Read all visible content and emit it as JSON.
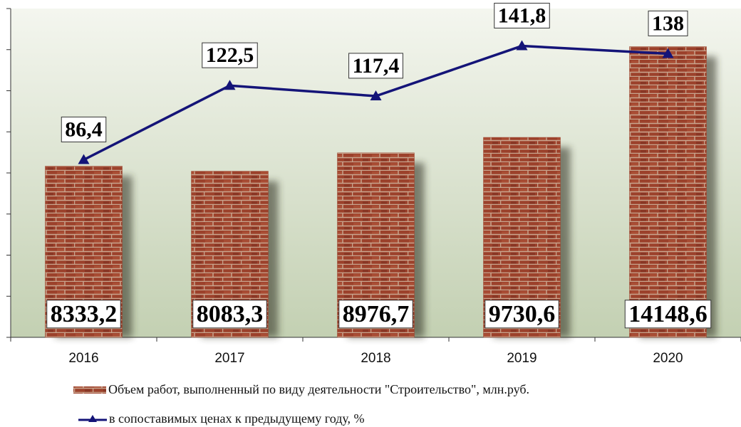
{
  "chart_data": {
    "type": "bar_line",
    "categories": [
      "2016",
      "2017",
      "2018",
      "2019",
      "2020"
    ],
    "series": [
      {
        "name": "Объем работ, выполненный по виду деятельности \"Строительство\", млн.руб.",
        "type": "bar",
        "color": "#9c412b",
        "values": [
          8333.2,
          8083.3,
          8976.7,
          9730.6,
          14148.6
        ],
        "value_labels": [
          "8333,2",
          "8083,3",
          "8976,7",
          "9730,6",
          "14148,6"
        ]
      },
      {
        "name": "в сопоставимых ценах к предыдущему году, %",
        "type": "line",
        "axis": "y2",
        "color": "#141478",
        "values": [
          86.4,
          122.5,
          117.4,
          141.8,
          138
        ],
        "value_labels": [
          "86,4",
          "122,5",
          "117,4",
          "141,8",
          "138"
        ]
      }
    ],
    "ylim": [
      0,
      16000
    ],
    "yticks": [
      0,
      2000,
      4000,
      6000,
      8000,
      10000,
      12000,
      14000,
      16000
    ],
    "y2lim": [
      0,
      160
    ]
  }
}
